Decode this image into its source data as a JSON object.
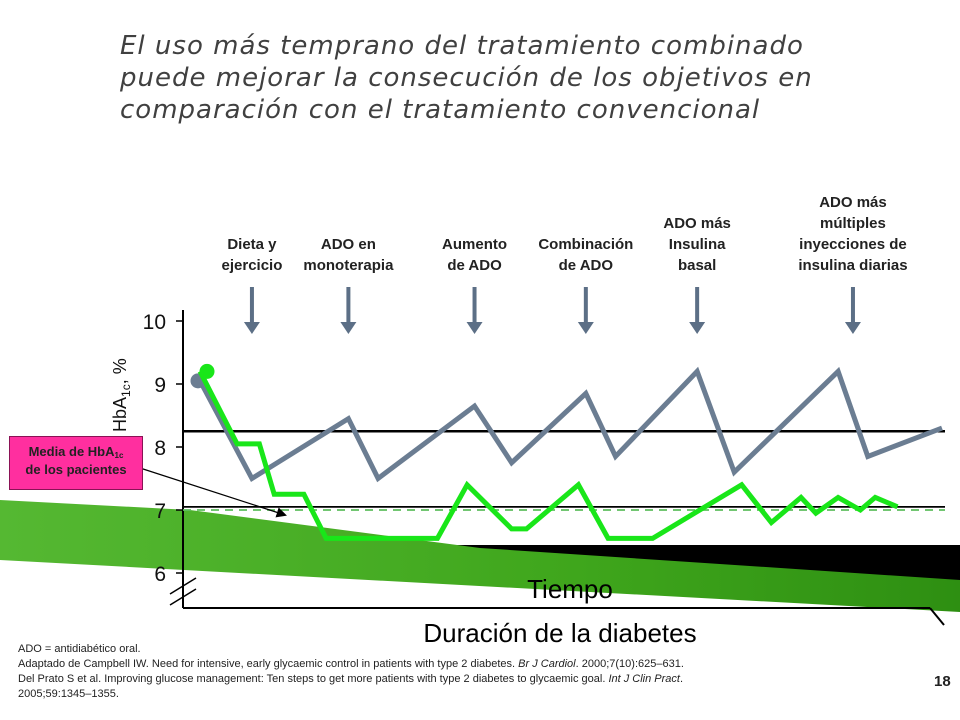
{
  "slide": {
    "title_lines": [
      "El uso más temprano del tratamiento combinado",
      "puede mejorar la consecución de los objetivos en",
      "comparación con el tratamiento convencional"
    ],
    "page_number": "18",
    "callout": {
      "line1_a": "Media de HbA",
      "line1_sub": "1c",
      "line2": "de los pacientes"
    },
    "footnote": {
      "abbr": "ADO = antidiabético oral.",
      "ref1_a": "Adaptado de Campbell IW. Need for intensive, early glycaemic control in patients with type 2 diabetes. ",
      "ref1_journal": "Br J Cardiol",
      "ref1_b": ". 2000;7(10):625–631.",
      "ref2_a": "Del Prato S et al. Improving glucose management: Ten steps to get more patients with type 2 diabetes to glycaemic goal. ",
      "ref2_journal": "Int J Clin Pract",
      "ref2_b": ".",
      "ref3": "2005;59:1345–1355."
    },
    "colors": {
      "gray_series": "#6b7d92",
      "green_series": "#19e619",
      "callout": "#ff2f9f",
      "background_green": "#3fa61c",
      "background_black": "#000000"
    }
  },
  "chart_data": {
    "type": "line",
    "xlabel": "Duración de la diabetes",
    "xlabel2": "Tiempo",
    "ylabel": "HbA",
    "ylabel_sub": "1c",
    "ylabel_unit": ", %",
    "ylim": [
      6,
      10
    ],
    "yticks": [
      "6",
      "7",
      "8",
      "9",
      "10"
    ],
    "stages": [
      {
        "lines": [
          "Dieta y",
          "ejercicio"
        ],
        "x": 0.07
      },
      {
        "lines": [
          "ADO en",
          "monoterapia"
        ],
        "x": 0.2
      },
      {
        "lines": [
          "Aumento",
          "de ADO"
        ],
        "x": 0.37
      },
      {
        "lines": [
          "Combinación",
          "de ADO"
        ],
        "x": 0.52
      },
      {
        "lines": [
          "ADO más",
          "Insulina",
          "basal"
        ],
        "x": 0.67
      },
      {
        "lines": [
          "ADO más",
          "múltiples",
          "inyecciones de",
          "insulina diarias"
        ],
        "x": 0.88
      }
    ],
    "series": [
      {
        "color": "#6b7d92",
        "points": [
          [
            0.0,
            9.05
          ],
          [
            0.07,
            7.5
          ],
          [
            0.2,
            8.45
          ],
          [
            0.24,
            7.5
          ],
          [
            0.37,
            8.65
          ],
          [
            0.42,
            7.75
          ],
          [
            0.52,
            8.85
          ],
          [
            0.56,
            7.85
          ],
          [
            0.67,
            9.2
          ],
          [
            0.72,
            7.6
          ],
          [
            0.86,
            9.2
          ],
          [
            0.9,
            7.85
          ],
          [
            1.0,
            8.3
          ]
        ]
      },
      {
        "color": "#19e619",
        "points": [
          [
            0.0,
            9.2
          ],
          [
            0.05,
            8.05
          ],
          [
            0.08,
            8.05
          ],
          [
            0.1,
            7.25
          ],
          [
            0.14,
            7.25
          ],
          [
            0.17,
            6.55
          ],
          [
            0.28,
            6.55
          ],
          [
            0.32,
            6.55
          ],
          [
            0.36,
            7.4
          ],
          [
            0.42,
            6.7
          ],
          [
            0.44,
            6.7
          ],
          [
            0.51,
            7.4
          ],
          [
            0.55,
            6.55
          ],
          [
            0.61,
            6.55
          ],
          [
            0.73,
            7.4
          ],
          [
            0.77,
            6.8
          ],
          [
            0.81,
            7.2
          ],
          [
            0.83,
            6.95
          ],
          [
            0.86,
            7.2
          ],
          [
            0.89,
            7.0
          ],
          [
            0.91,
            7.2
          ],
          [
            0.94,
            7.05
          ]
        ]
      }
    ],
    "reference_lines": [
      {
        "y": 8.25,
        "style": "solid"
      },
      {
        "y": 7.05,
        "style": "solid"
      },
      {
        "y": 7.0,
        "style": "dashed"
      }
    ]
  }
}
